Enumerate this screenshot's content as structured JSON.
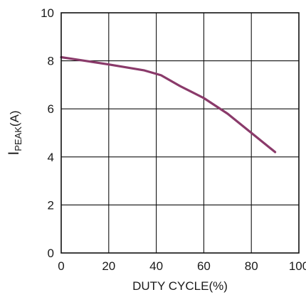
{
  "chart_data": {
    "type": "line",
    "title": "",
    "xlabel": "DUTY CYCLE(%)",
    "ylabel": {
      "main": "I",
      "subscript": "PEAK",
      "unit": "(A)"
    },
    "xlim": [
      0,
      100
    ],
    "ylim": [
      0,
      10
    ],
    "x_ticks": [
      0,
      20,
      40,
      60,
      80,
      100
    ],
    "y_ticks": [
      0,
      2,
      4,
      6,
      8,
      10
    ],
    "x_tick_labels": [
      "0",
      "20",
      "40",
      "60",
      "80",
      "100"
    ],
    "y_tick_labels": [
      "0",
      "2",
      "4",
      "6",
      "8",
      "10"
    ],
    "grid": true,
    "series": [
      {
        "color": "#8a3a6a",
        "x": [
          0,
          10,
          20,
          35,
          42,
          50,
          60,
          70,
          80,
          90
        ],
        "y": [
          8.15,
          8.0,
          7.85,
          7.6,
          7.4,
          6.95,
          6.45,
          5.8,
          5.0,
          4.2
        ]
      }
    ]
  }
}
